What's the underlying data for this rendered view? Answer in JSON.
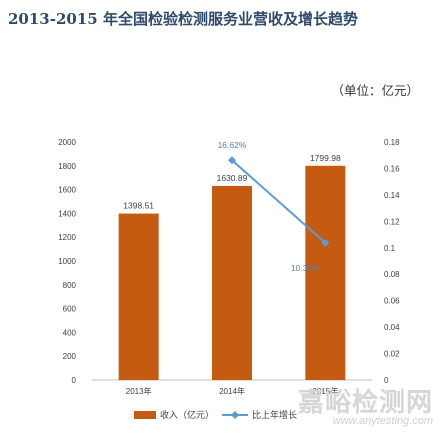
{
  "title": "2013-2015 年全国检验检测服务业营收及增长趋势",
  "unit_label": "（单位：亿元）",
  "watermark": {
    "text_cn": "嘉峪检测网",
    "text_en": "www.anytesting.com"
  },
  "colors": {
    "bar": "#c55a11",
    "line": "#5b9bd5",
    "title": "#2e4b6b"
  },
  "chart_data": {
    "type": "bar",
    "categories": [
      "2013年",
      "2014年",
      "2015年"
    ],
    "series": [
      {
        "name": "收入（亿元）",
        "type": "bar",
        "axis": "left",
        "values": [
          1398.51,
          1630.89,
          1799.98
        ],
        "labels": [
          "1398.51",
          "1630.89",
          "1799.98"
        ]
      },
      {
        "name": "比上年增长",
        "type": "line",
        "axis": "right",
        "values": [
          null,
          0.1662,
          0.1037
        ],
        "labels": [
          "",
          "16.62%",
          "10.37%"
        ]
      }
    ],
    "y_left": {
      "min": 0,
      "max": 2000,
      "step": 200,
      "ticks": [
        "0",
        "200",
        "400",
        "600",
        "800",
        "1000",
        "1200",
        "1400",
        "1600",
        "1800",
        "2000"
      ]
    },
    "y_right": {
      "min": 0,
      "max": 0.18,
      "step": 0.02,
      "ticks": [
        "0",
        "0.02",
        "0.04",
        "0.06",
        "0.08",
        "0.1",
        "0.12",
        "0.14",
        "0.16",
        "0.18"
      ]
    },
    "grid": false,
    "legend_position": "bottom"
  }
}
